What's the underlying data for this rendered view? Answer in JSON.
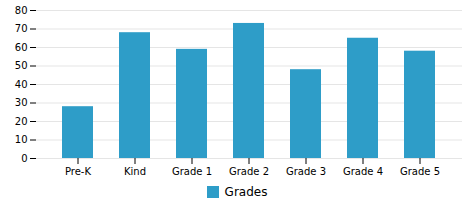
{
  "chart_data": {
    "type": "bar",
    "categories": [
      "Pre-K",
      "Kind",
      "Grade 1",
      "Grade 2",
      "Grade 3",
      "Grade 4",
      "Grade 5"
    ],
    "series": [
      {
        "name": "Grades",
        "color": "#2e9dc8",
        "values": [
          28,
          68,
          59,
          73,
          48,
          65,
          58
        ]
      }
    ],
    "ylim": [
      0,
      80
    ],
    "yticks": [
      0,
      10,
      20,
      30,
      40,
      50,
      60,
      70,
      80
    ],
    "grid": true,
    "legend": "bottom"
  }
}
